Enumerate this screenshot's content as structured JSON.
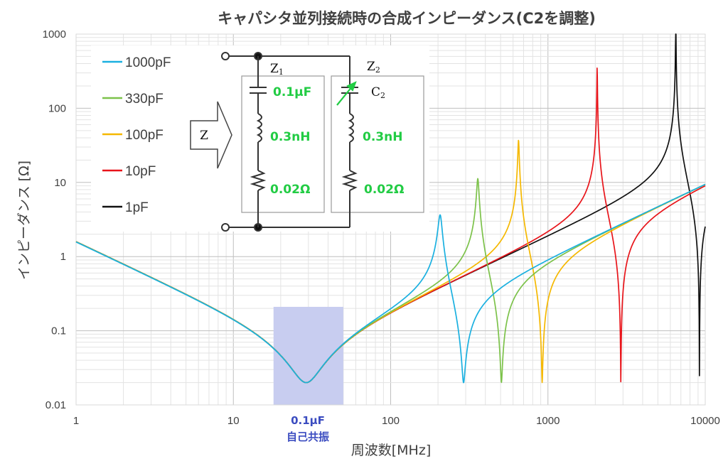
{
  "chart_data": {
    "type": "line",
    "title": "キャパシタ並列接続時の合成インピーダンス(C2を調整)",
    "xlabel": "周波数[MHz]",
    "ylabel": "インピーダンス [Ω]",
    "xscale": "log",
    "yscale": "log",
    "xlim": [
      1,
      10000
    ],
    "ylim": [
      0.01,
      1000
    ],
    "x_ticks": [
      "1",
      "10",
      "100",
      "1000",
      "10000"
    ],
    "y_ticks": [
      "1000",
      "100",
      "10",
      "1",
      "0.1",
      "0.01"
    ],
    "grid": true,
    "legend_position": "top-left",
    "series": [
      {
        "name": "1000pF",
        "color": "#1ab0e0",
        "c2_farads": 1e-09,
        "peak_mhz": 210,
        "peak_ohm": 3.6,
        "dip_mhz": 291,
        "dip_ohm": 0.02
      },
      {
        "name": "330pF",
        "color": "#7cc24a",
        "c2_farads": 3.3e-10,
        "peak_mhz": 365,
        "peak_ohm": 11,
        "dip_mhz": 507,
        "dip_ohm": 0.02
      },
      {
        "name": "100pF",
        "color": "#f5b800",
        "c2_farads": 1e-10,
        "peak_mhz": 655,
        "peak_ohm": 33,
        "dip_mhz": 919,
        "dip_ohm": 0.02
      },
      {
        "name": "10pF",
        "color": "#e8141a",
        "c2_farads": 1e-11,
        "peak_mhz": 2100,
        "peak_ohm": 210,
        "dip_mhz": 2906,
        "dip_ohm": 0.02
      },
      {
        "name": "1pF",
        "color": "#111111",
        "c2_farads": 1e-12,
        "peak_mhz": 6600,
        "peak_ohm": 800,
        "dip_mhz": 9190,
        "dip_ohm": 0.02
      }
    ],
    "common_branch": {
      "c1": "0.1µF",
      "esl": "0.3nH",
      "esr": "0.02Ω",
      "self_resonance_mhz": 29,
      "self_resonance_ohm": 0.02
    },
    "annotation": {
      "line1": "0.1µF",
      "line2": "自己共振",
      "band_mhz": [
        18,
        50
      ],
      "band_top_ohm": 0.21,
      "band_color": "#c8cdf0"
    }
  },
  "circuit": {
    "input_label": "Z",
    "branch1_name": "Z",
    "branch1_sub": "1",
    "branch2_name": "Z",
    "branch2_sub": "2",
    "cap2_name": "C",
    "cap2_sub": "2",
    "c1_value": "0.1µF",
    "l1_value": "0.3nH",
    "r1_value": "0.02Ω",
    "l2_value": "0.3nH",
    "r2_value": "0.02Ω",
    "label_color": "#22cc44"
  }
}
